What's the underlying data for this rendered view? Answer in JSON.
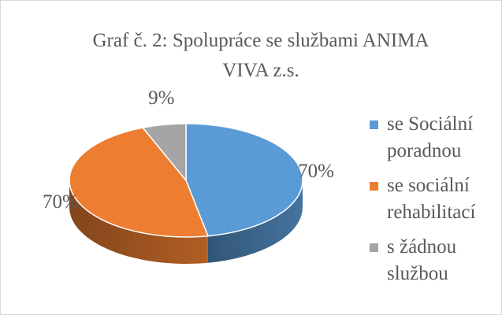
{
  "chart_data": {
    "type": "pie",
    "title": "Graf č. 2: Spolupráce se službami ANIMA VIVA z.s.",
    "categories": [
      "se Sociální poradnou",
      "se sociální rehabilitací",
      "s žádnou službou"
    ],
    "values": [
      70,
      70,
      9
    ],
    "value_labels": [
      "70%",
      "70%",
      "9%"
    ],
    "colors": [
      "#5b9bd5",
      "#ed7d31",
      "#a5a5a5"
    ],
    "legend": "right"
  }
}
